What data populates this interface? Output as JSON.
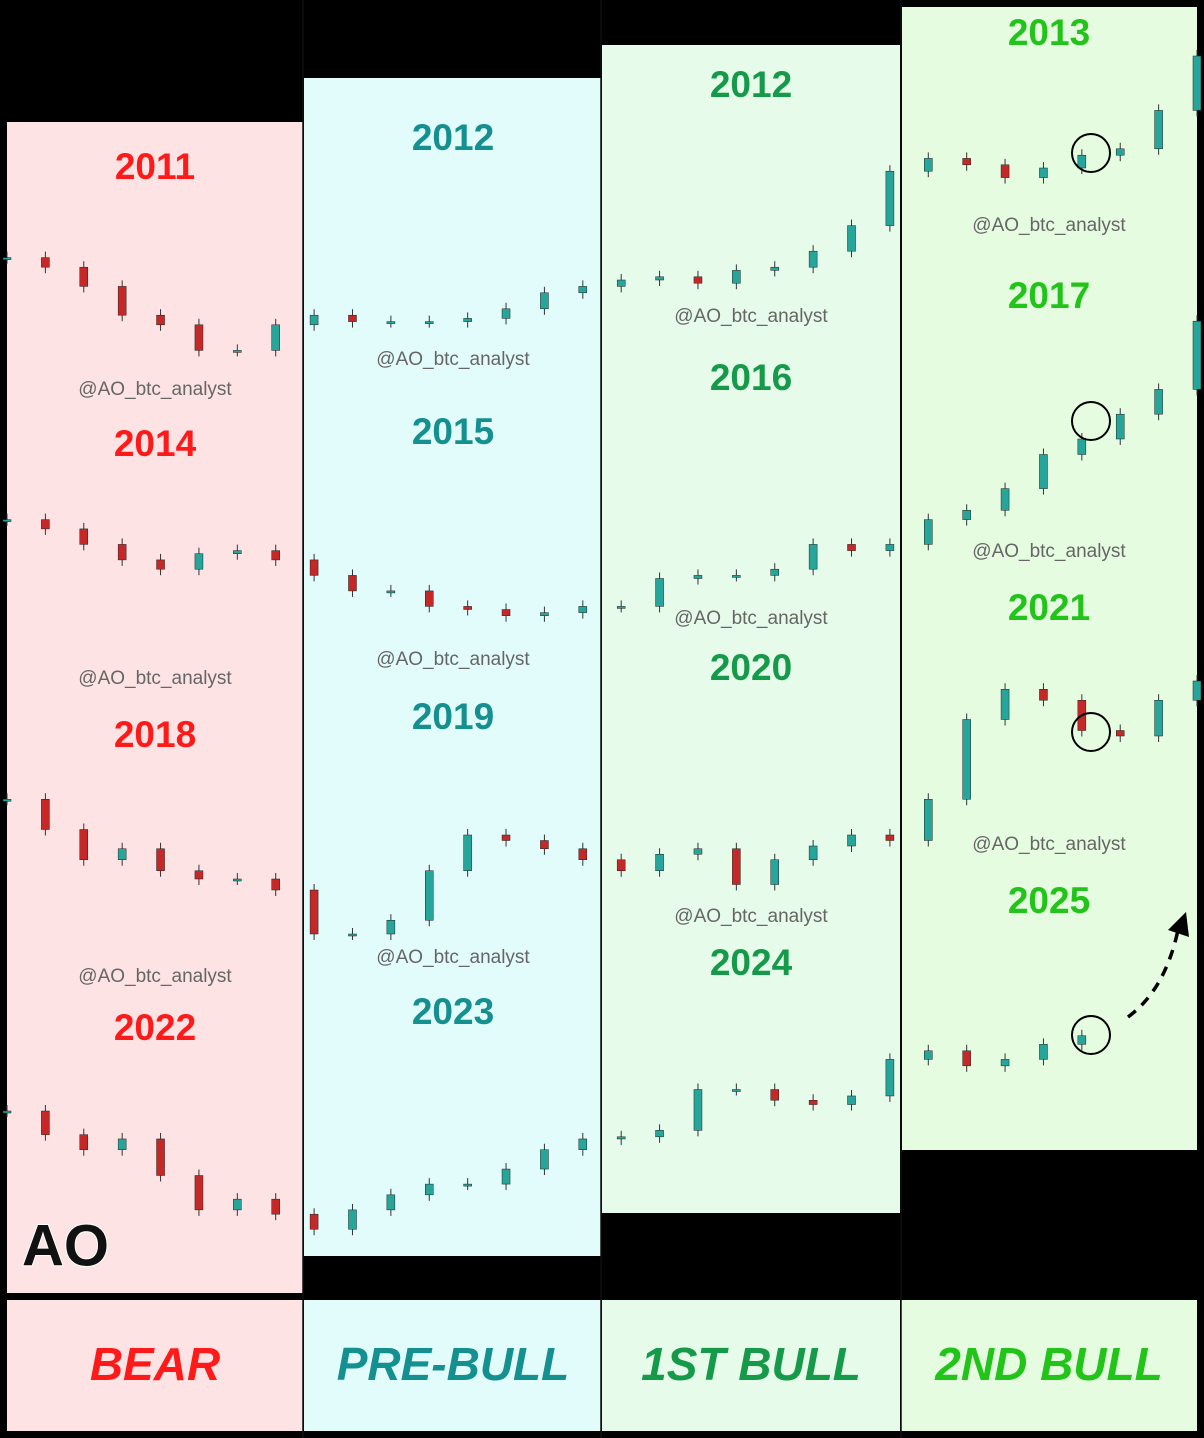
{
  "logo": "AO",
  "up_color": "#26a69a",
  "down_color": "#c62828",
  "columns": [
    {
      "phase": "BEAR",
      "color": "#ff1a1a",
      "years": [
        "2011",
        "2014",
        "2018",
        "2022"
      ],
      "watermarks": [
        "@AO_btc_analyst",
        "@AO_btc_analyst",
        "@AO_btc_analyst"
      ]
    },
    {
      "phase": "PRE-BULL",
      "color": "#13908f",
      "years": [
        "2012",
        "2015",
        "2019",
        "2023"
      ],
      "watermarks": [
        "@AO_btc_analyst",
        "@AO_btc_analyst",
        "@AO_btc_analyst"
      ]
    },
    {
      "phase": "1ST BULL",
      "color": "#159a4a",
      "years": [
        "2012",
        "2016",
        "2020",
        "2024"
      ],
      "watermarks": [
        "@AO_btc_analyst",
        "@AO_btc_analyst",
        "@AO_btc_analyst"
      ]
    },
    {
      "phase": "2ND BULL",
      "color": "#22c41a",
      "years": [
        "2013",
        "2017",
        "2021",
        "2025"
      ],
      "watermarks": [
        "@AO_btc_analyst",
        "@AO_btc_analyst",
        "@AO_btc_analyst"
      ]
    }
  ],
  "cycles": [
    {
      "values": [
        32,
        29,
        23,
        14,
        11,
        3,
        3,
        11,
        14,
        12,
        12,
        12,
        13,
        16,
        21,
        23,
        25,
        26,
        24,
        28,
        29,
        34,
        42,
        59,
        63,
        61,
        57,
        60,
        64,
        66,
        78,
        95
      ]
    },
    {
      "values": [
        34,
        31,
        26,
        21,
        18,
        23,
        24,
        21,
        16,
        11,
        11,
        6,
        5,
        3,
        4,
        6,
        6,
        15,
        16,
        16,
        18,
        26,
        24,
        26,
        34,
        37,
        44,
        55,
        60,
        68,
        76,
        98
      ]
    },
    {
      "values": [
        53,
        42,
        31,
        35,
        27,
        24,
        24,
        20,
        4,
        4,
        9,
        27,
        40,
        38,
        35,
        31,
        27,
        33,
        35,
        22,
        31,
        36,
        40,
        38,
        53,
        82,
        93,
        89,
        78,
        76,
        89,
        96
      ]
    },
    {
      "values": [
        60,
        49,
        42,
        47,
        30,
        14,
        19,
        12,
        5,
        14,
        21,
        26,
        26,
        33,
        42,
        47,
        48,
        51,
        70,
        70,
        65,
        63,
        67,
        84,
        88,
        81,
        84,
        91,
        95
      ]
    }
  ]
}
